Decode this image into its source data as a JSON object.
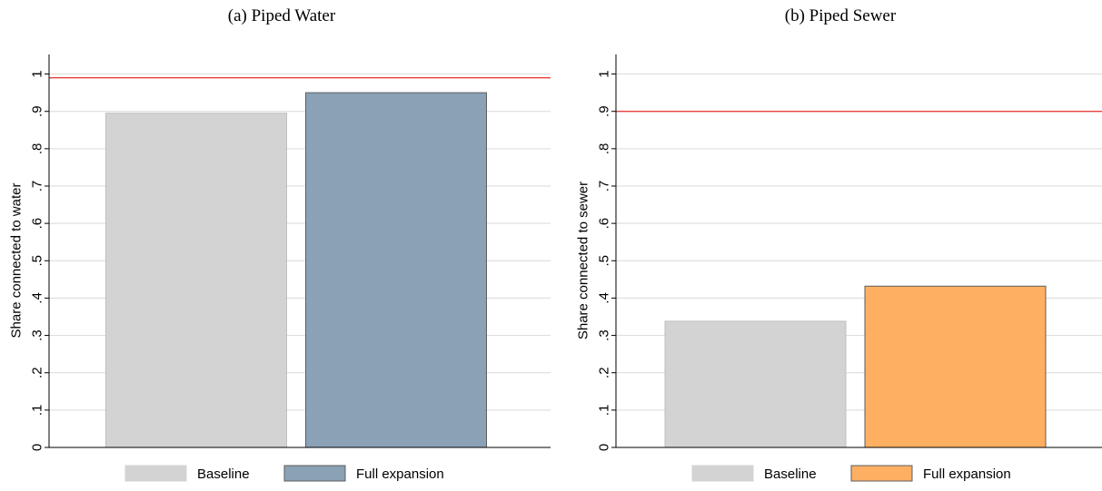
{
  "chart_data": [
    {
      "type": "bar",
      "title": "(a) Piped Water",
      "ylabel": "Share connected to water",
      "xlabel": "",
      "ylim": [
        0,
        1.05
      ],
      "yticks": [
        0,
        0.1,
        0.2,
        0.3,
        0.4,
        0.5,
        0.6,
        0.7,
        0.8,
        0.9,
        1
      ],
      "ytick_labels": [
        "0",
        ".1",
        ".2",
        ".3",
        ".4",
        ".5",
        ".6",
        ".7",
        ".8",
        ".9",
        "1"
      ],
      "grid": true,
      "legend_position": "bottom",
      "reference_line": {
        "value": 0.99,
        "color": "#e8413f"
      },
      "series": [
        {
          "name": "Baseline",
          "values": [
            0.895
          ],
          "color": "#d3d3d3"
        },
        {
          "name": "Full expansion",
          "values": [
            0.95
          ],
          "color": "#8aa1b6"
        }
      ]
    },
    {
      "type": "bar",
      "title": "(b) Piped Sewer",
      "ylabel": "Share connected to sewer",
      "xlabel": "",
      "ylim": [
        0,
        1.05
      ],
      "yticks": [
        0,
        0.1,
        0.2,
        0.3,
        0.4,
        0.5,
        0.6,
        0.7,
        0.8,
        0.9,
        1
      ],
      "ytick_labels": [
        "0",
        ".1",
        ".2",
        ".3",
        ".4",
        ".5",
        ".6",
        ".7",
        ".8",
        ".9",
        "1"
      ],
      "grid": true,
      "legend_position": "bottom",
      "reference_line": {
        "value": 0.9,
        "color": "#e8413f"
      },
      "series": [
        {
          "name": "Baseline",
          "values": [
            0.338
          ],
          "color": "#d3d3d3"
        },
        {
          "name": "Full expansion",
          "values": [
            0.432
          ],
          "color": "#ffaf61"
        }
      ]
    }
  ]
}
